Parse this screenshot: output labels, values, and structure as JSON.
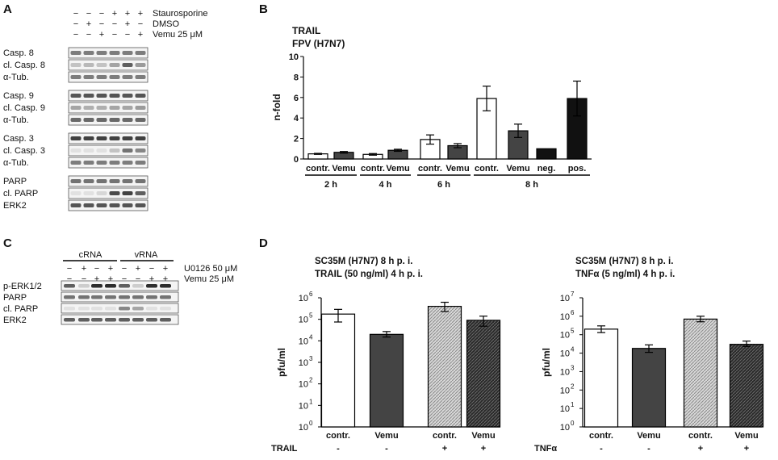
{
  "panels": {
    "A": {
      "letter": "A",
      "treatments": [
        {
          "label": "Staurosporine",
          "signs": [
            "−",
            "−",
            "−",
            "+",
            "+",
            "+"
          ]
        },
        {
          "label": "DMSO",
          "signs": [
            "−",
            "+",
            "−",
            "−",
            "+",
            "−"
          ]
        },
        {
          "label": "Vemu 25 μM",
          "signs": [
            "−",
            "−",
            "+",
            "−",
            "−",
            "+"
          ]
        }
      ],
      "blot_groups": [
        {
          "rows": [
            {
              "label": "Casp. 8",
              "intensity": [
                0.55,
                0.55,
                0.55,
                0.55,
                0.55,
                0.55
              ]
            },
            {
              "label": "cl. Casp. 8",
              "intensity": [
                0.2,
                0.25,
                0.2,
                0.35,
                0.7,
                0.4
              ]
            },
            {
              "label": "α-Tub.",
              "intensity": [
                0.55,
                0.55,
                0.55,
                0.55,
                0.55,
                0.55
              ]
            }
          ]
        },
        {
          "rows": [
            {
              "label": "Casp. 9",
              "intensity": [
                0.75,
                0.75,
                0.75,
                0.75,
                0.75,
                0.75
              ]
            },
            {
              "label": "cl. Casp. 9",
              "intensity": [
                0.35,
                0.3,
                0.3,
                0.35,
                0.35,
                0.4
              ]
            },
            {
              "label": "α-Tub.",
              "intensity": [
                0.65,
                0.65,
                0.65,
                0.65,
                0.65,
                0.65
              ]
            }
          ]
        },
        {
          "rows": [
            {
              "label": "Casp. 3",
              "intensity": [
                0.85,
                0.85,
                0.85,
                0.85,
                0.85,
                0.85
              ]
            },
            {
              "label": "cl. Casp. 3",
              "intensity": [
                0.05,
                0.05,
                0.05,
                0.2,
                0.6,
                0.5
              ]
            },
            {
              "label": "α-Tub.",
              "intensity": [
                0.55,
                0.55,
                0.55,
                0.55,
                0.55,
                0.55
              ]
            }
          ]
        },
        {
          "rows": [
            {
              "label": "PARP",
              "intensity": [
                0.6,
                0.6,
                0.6,
                0.6,
                0.6,
                0.6
              ]
            },
            {
              "label": "cl. PARP",
              "intensity": [
                0.05,
                0.05,
                0.1,
                0.8,
                0.85,
                0.7
              ]
            },
            {
              "label": "ERK2",
              "intensity": [
                0.75,
                0.75,
                0.75,
                0.75,
                0.75,
                0.75
              ]
            }
          ]
        }
      ]
    },
    "B": {
      "letter": "B",
      "title_lines": [
        "TRAIL",
        "FPV (H7N7)"
      ]
    },
    "C": {
      "letter": "C",
      "group_labels": [
        "cRNA",
        "vRNA"
      ],
      "treatments": [
        {
          "label": "U0126 50 μM",
          "signs": [
            "−",
            "+",
            "−",
            "+",
            "−",
            "+",
            "−",
            "+"
          ]
        },
        {
          "label": "Vemu 25 μM",
          "signs": [
            "−",
            "−",
            "+",
            "+",
            "−",
            "−",
            "+",
            "+"
          ]
        }
      ],
      "rows": [
        {
          "label": "p-ERK1/2",
          "intensity": [
            0.7,
            0.15,
            0.95,
            0.95,
            0.7,
            0.15,
            0.95,
            0.95
          ]
        },
        {
          "label": "PARP",
          "intensity": [
            0.6,
            0.6,
            0.6,
            0.6,
            0.6,
            0.6,
            0.6,
            0.6
          ]
        },
        {
          "label": "cl. PARP",
          "intensity": [
            0.05,
            0.05,
            0.05,
            0.05,
            0.5,
            0.35,
            0.05,
            0.05
          ]
        },
        {
          "label": "ERK2",
          "intensity": [
            0.7,
            0.7,
            0.7,
            0.7,
            0.7,
            0.7,
            0.7,
            0.7
          ]
        }
      ]
    },
    "D": {
      "letter": "D"
    }
  },
  "colors": {
    "white_bar": "#ffffff",
    "dark_bar": "#444444",
    "black_bar": "#111111",
    "hatched_light": "#bdbdbd",
    "hatched_dark": "#2a2a2a",
    "axis": "#000000"
  },
  "chart_data": [
    {
      "id": "B",
      "type": "bar",
      "title": "TRAIL FPV (H7N7)",
      "ylabel": "n-fold",
      "ylim": [
        0,
        10
      ],
      "yticks": [
        "0",
        "2",
        "4",
        "6",
        "8",
        "10"
      ],
      "categories": [
        "contr.",
        "Vemu",
        "contr.",
        "Vemu",
        "contr.",
        "Vemu",
        "contr.",
        "Vemu",
        "neg.",
        "pos."
      ],
      "values": [
        0.5,
        0.65,
        0.45,
        0.85,
        1.9,
        1.3,
        5.9,
        2.75,
        1.0,
        5.9
      ],
      "errors": [
        0.05,
        0.08,
        0.08,
        0.1,
        0.45,
        0.2,
        1.2,
        0.65,
        0.0,
        1.7
      ],
      "fills": [
        "white",
        "dark",
        "white",
        "dark",
        "white",
        "dark",
        "white",
        "dark",
        "black",
        "black"
      ],
      "group_labels": [
        {
          "label": "2 h",
          "from": 0,
          "to": 1
        },
        {
          "label": "4 h",
          "from": 2,
          "to": 3
        },
        {
          "label": "6 h",
          "from": 4,
          "to": 5
        },
        {
          "label": "8 h",
          "from": 6,
          "to": 9
        }
      ]
    },
    {
      "id": "D1",
      "type": "bar",
      "yscale": "log",
      "title_lines": [
        "SC35M (H7N7) 8 h p. i.",
        "TRAIL (50 ng/ml) 4 h p. i."
      ],
      "ylabel": "pfu/ml",
      "ylim_exp": [
        0,
        6
      ],
      "ytick_exps": [
        "0",
        "1",
        "2",
        "3",
        "4",
        "5",
        "6"
      ],
      "categories": [
        "contr.",
        "Vemu",
        "contr.",
        "Vemu"
      ],
      "values": [
        175000,
        20000,
        400000,
        90000
      ],
      "err_low": [
        75000,
        15000,
        230000,
        48000
      ],
      "err_high": [
        290000,
        27000,
        620000,
        140000
      ],
      "fills": [
        "white",
        "dark",
        "hatched_light",
        "hatched_dark"
      ],
      "factor_label": "TRAIL",
      "factor_signs": [
        "-",
        "-",
        "+",
        "+"
      ]
    },
    {
      "id": "D2",
      "type": "bar",
      "yscale": "log",
      "title_lines": [
        "SC35M (H7N7) 8 h p. i.",
        "TNFα (5 ng/ml) 4 h p. i."
      ],
      "ylabel": "pfu/ml",
      "ylim_exp": [
        0,
        7
      ],
      "ytick_exps": [
        "0",
        "1",
        "2",
        "3",
        "4",
        "5",
        "6",
        "7"
      ],
      "categories": [
        "contr.",
        "Vemu",
        "contr.",
        "Vemu"
      ],
      "values": [
        200000,
        18000,
        700000,
        30000
      ],
      "err_low": [
        130000,
        11000,
        500000,
        23000
      ],
      "err_high": [
        300000,
        28000,
        1000000,
        45000
      ],
      "fills": [
        "white",
        "dark",
        "hatched_light",
        "hatched_dark"
      ],
      "factor_label": "TNFα",
      "factor_signs": [
        "-",
        "-",
        "+",
        "+"
      ]
    }
  ]
}
